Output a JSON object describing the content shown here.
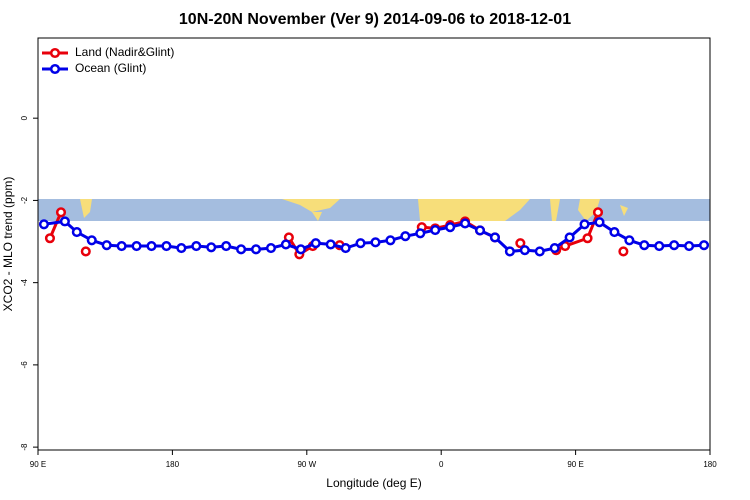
{
  "chart_data": {
    "type": "line",
    "title": "10N-20N November (Ver 9)   2014-09-06 to 2018-12-01",
    "x_label": "Longitude (deg E)",
    "y_label": "XCO2 - MLO trend (ppm)",
    "xlim": [
      90,
      540
    ],
    "xticks": [
      {
        "value": 90,
        "label": "90 E"
      },
      180,
      {
        "value": 270,
        "label": "90 W"
      },
      {
        "value": 360,
        "label": "0"
      },
      {
        "value": 450,
        "label": "90 E"
      },
      {
        "value": 540,
        "label": "180"
      }
    ],
    "ylim": [
      -8.07,
      1.95
    ],
    "yticks": [
      -8,
      -6,
      -4,
      -2,
      0
    ],
    "legend": "top-left",
    "series": [
      {
        "name": "Land (Nadir&Glint)",
        "color": "#e8000b",
        "x": [
          98,
          105.4,
          null,
          122,
          null,
          258,
          265,
          274,
          null,
          292,
          null,
          347,
          356,
          366,
          376,
          386,
          396,
          null,
          413,
          null,
          437,
          443,
          458,
          465,
          null,
          482
        ],
        "values": [
          -2.92,
          -2.29,
          null,
          -3.24,
          null,
          -2.9,
          -3.31,
          -3.11,
          null,
          -3.09,
          null,
          -2.65,
          -2.68,
          -2.6,
          -2.51,
          -2.73,
          -2.9,
          null,
          -3.04,
          null,
          -3.21,
          -3.11,
          -2.92,
          -2.29,
          null,
          -3.24
        ]
      },
      {
        "name": "Ocean (Glint)",
        "color": "#0000e8",
        "x": [
          94,
          108,
          116,
          126,
          136,
          146,
          156,
          166,
          176,
          186,
          196,
          206,
          216,
          226,
          236,
          246,
          256,
          266,
          276,
          286,
          296,
          306,
          316,
          326,
          336,
          346,
          356,
          366,
          376,
          386,
          396,
          406,
          416,
          426,
          436,
          446,
          456,
          466,
          476,
          486,
          496,
          506,
          516,
          526,
          536
        ],
        "values": [
          -2.58,
          -2.51,
          -2.77,
          -2.97,
          -3.09,
          -3.11,
          -3.11,
          -3.11,
          -3.11,
          -3.16,
          -3.11,
          -3.14,
          -3.11,
          -3.19,
          -3.19,
          -3.16,
          -3.07,
          -3.19,
          -3.04,
          -3.07,
          -3.16,
          -3.04,
          -3.02,
          -2.97,
          -2.87,
          -2.8,
          -2.72,
          -2.65,
          -2.56,
          -2.73,
          -2.9,
          -3.24,
          -3.21,
          -3.24,
          -3.16,
          -2.9,
          -2.58,
          -2.53,
          -2.77,
          -2.97,
          -3.09,
          -3.11,
          -3.09,
          -3.11,
          -3.09
        ]
      }
    ]
  }
}
